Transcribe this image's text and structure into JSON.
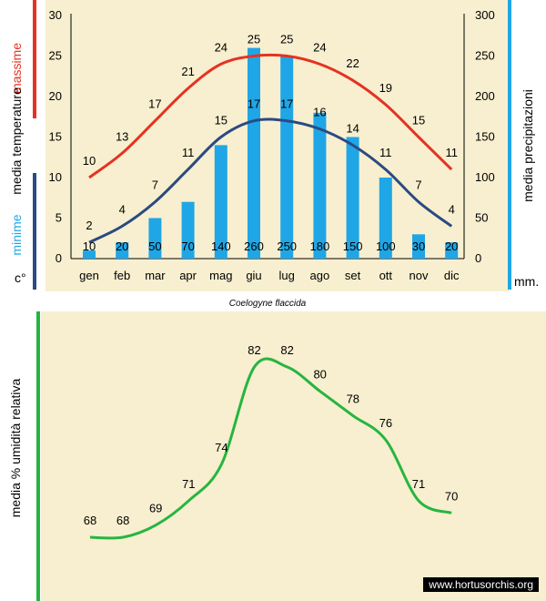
{
  "colors": {
    "background": "#f7efcf",
    "max_temp": "#e53222",
    "min_temp": "#2b4a82",
    "precip": "#1fa6e6",
    "humidity": "#27b540",
    "axis": "#000000"
  },
  "text": {
    "label_max": "massime",
    "label_media_temp": "media  temperature",
    "label_min": "minime",
    "label_celsius": "c°",
    "label_precip": "media  precipitazioni",
    "label_mm": "mm.",
    "species_title": "Coelogyne flaccida",
    "label_humidity": "media %  umidità relativa",
    "credit": "www.hortusorchis.org"
  },
  "chart_data": [
    {
      "type": "bar+line",
      "title": "Coelogyne flaccida",
      "categories": [
        "gen",
        "feb",
        "mar",
        "apr",
        "mag",
        "giu",
        "lug",
        "ago",
        "set",
        "ott",
        "nov",
        "dic"
      ],
      "y_left": {
        "label": "media temperature c°",
        "ylim": [
          0,
          30
        ],
        "ticks": [
          0,
          5,
          10,
          15,
          20,
          25,
          30
        ]
      },
      "y_right": {
        "label": "media precipitazioni mm.",
        "ylim": [
          0,
          300
        ],
        "ticks": [
          0,
          50,
          100,
          150,
          200,
          250,
          300
        ]
      },
      "series": [
        {
          "name": "massime",
          "kind": "line",
          "axis": "left",
          "values": [
            10,
            13,
            17,
            21,
            24,
            25,
            25,
            24,
            22,
            19,
            15,
            11
          ]
        },
        {
          "name": "minime",
          "kind": "line",
          "axis": "left",
          "values": [
            2,
            4,
            7,
            11,
            15,
            17,
            17,
            16,
            14,
            11,
            7,
            4
          ]
        },
        {
          "name": "precipitazioni",
          "kind": "bar",
          "axis": "right",
          "values": [
            10,
            20,
            50,
            70,
            140,
            260,
            250,
            180,
            150,
            100,
            30,
            20
          ]
        }
      ]
    },
    {
      "type": "line",
      "ylabel": "media % umidità relativa",
      "categories": [
        "gen",
        "feb",
        "mar",
        "apr",
        "mag",
        "giu",
        "lug",
        "ago",
        "set",
        "ott",
        "nov",
        "dic"
      ],
      "series": [
        {
          "name": "umidità relativa",
          "values": [
            68,
            68,
            69,
            71,
            74,
            82,
            82,
            80,
            78,
            76,
            71,
            70
          ]
        }
      ]
    }
  ]
}
